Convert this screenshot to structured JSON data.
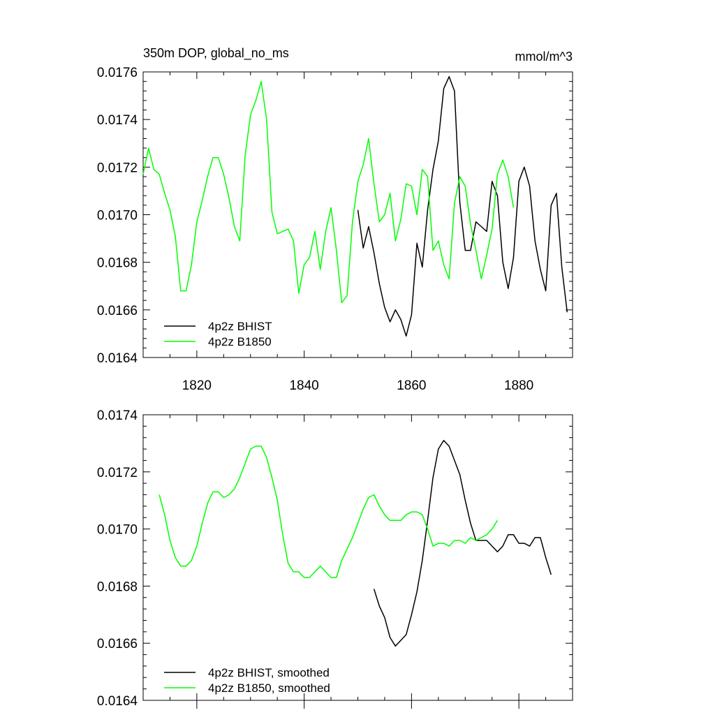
{
  "chart_data": [
    {
      "type": "line",
      "title": "350m DOP, global_no_ms",
      "units": "mmol/m^3",
      "xlabel": "",
      "ylabel": "",
      "xlim": [
        1810,
        1890
      ],
      "ylim": [
        0.0164,
        0.0176
      ],
      "xticks": [
        1820,
        1840,
        1860,
        1880
      ],
      "xtick_labels": [
        "1820",
        "1840",
        "1860",
        "1880"
      ],
      "yticks": [
        0.0164,
        0.0166,
        0.0168,
        0.017,
        0.0172,
        0.0174,
        0.0176
      ],
      "ytick_labels": [
        "0.0164",
        "0.0166",
        "0.0168",
        "0.0170",
        "0.0172",
        "0.0174",
        "0.0176"
      ],
      "grid": false,
      "legend_position": "bottom-left",
      "series": [
        {
          "name": "4p2z BHIST",
          "color": "#000000",
          "x": [
            1850,
            1851,
            1852,
            1853,
            1854,
            1855,
            1856,
            1857,
            1858,
            1859,
            1860,
            1861,
            1862,
            1863,
            1864,
            1865,
            1866,
            1867,
            1868,
            1869,
            1870,
            1871,
            1872,
            1873,
            1874,
            1875,
            1876,
            1877,
            1878,
            1879,
            1880,
            1881,
            1882,
            1883,
            1884,
            1885,
            1886,
            1887,
            1888,
            1889
          ],
          "y": [
            0.01702,
            0.01686,
            0.01695,
            0.01684,
            0.01671,
            0.01661,
            0.01655,
            0.0166,
            0.01656,
            0.01649,
            0.01658,
            0.01688,
            0.01678,
            0.01702,
            0.01719,
            0.01731,
            0.01753,
            0.01758,
            0.01752,
            0.01705,
            0.01685,
            0.01685,
            0.01697,
            0.01695,
            0.01693,
            0.01714,
            0.01708,
            0.0168,
            0.01669,
            0.01682,
            0.01714,
            0.0172,
            0.01712,
            0.01689,
            0.01677,
            0.01668,
            0.01704,
            0.01709,
            0.01678,
            0.01659
          ]
        },
        {
          "name": "4p2z B1850",
          "color": "#00ff00",
          "x": [
            1810,
            1811,
            1812,
            1813,
            1814,
            1815,
            1816,
            1817,
            1818,
            1819,
            1820,
            1821,
            1822,
            1823,
            1824,
            1825,
            1826,
            1827,
            1828,
            1829,
            1830,
            1831,
            1832,
            1833,
            1834,
            1835,
            1836,
            1837,
            1838,
            1839,
            1840,
            1841,
            1842,
            1843,
            1844,
            1845,
            1846,
            1847,
            1848,
            1849,
            1850,
            1851,
            1852,
            1853,
            1854,
            1855,
            1856,
            1857,
            1858,
            1859,
            1860,
            1861,
            1862,
            1863,
            1864,
            1865,
            1866,
            1867,
            1868,
            1869,
            1870,
            1871,
            1872,
            1873,
            1874,
            1875,
            1876,
            1877,
            1878,
            1879
          ],
          "y": [
            0.01717,
            0.01728,
            0.01719,
            0.01717,
            0.01709,
            0.01702,
            0.01691,
            0.01668,
            0.01668,
            0.01679,
            0.01697,
            0.01706,
            0.01716,
            0.01724,
            0.01724,
            0.01717,
            0.01707,
            0.01695,
            0.01689,
            0.01725,
            0.01742,
            0.01748,
            0.01756,
            0.0174,
            0.01701,
            0.01692,
            0.01693,
            0.01694,
            0.01689,
            0.01667,
            0.01679,
            0.01682,
            0.01693,
            0.01677,
            0.01693,
            0.01703,
            0.01685,
            0.01663,
            0.01666,
            0.01697,
            0.01714,
            0.01721,
            0.01732,
            0.01713,
            0.01697,
            0.017,
            0.01709,
            0.01689,
            0.01698,
            0.01713,
            0.01712,
            0.017,
            0.01719,
            0.01716,
            0.01685,
            0.01689,
            0.01679,
            0.01673,
            0.01705,
            0.01716,
            0.01712,
            0.01696,
            0.01685,
            0.01673,
            0.01683,
            0.01694,
            0.01717,
            0.01723,
            0.01716,
            0.01703
          ]
        }
      ]
    },
    {
      "type": "line",
      "title": "",
      "xlabel": "",
      "ylabel": "",
      "xlim": [
        1810,
        1890
      ],
      "ylim": [
        0.0164,
        0.0174
      ],
      "xticks": [
        1820,
        1840,
        1860,
        1880
      ],
      "yticks": [
        0.0164,
        0.0166,
        0.0168,
        0.017,
        0.0172,
        0.0174
      ],
      "ytick_labels": [
        "0.0164",
        "0.0166",
        "0.0168",
        "0.0170",
        "0.0172",
        "0.0174"
      ],
      "grid": false,
      "legend_position": "bottom-left",
      "series": [
        {
          "name": "4p2z BHIST, smoothed",
          "color": "#000000",
          "x": [
            1853,
            1854,
            1855,
            1856,
            1857,
            1858,
            1859,
            1860,
            1861,
            1862,
            1863,
            1864,
            1865,
            1866,
            1867,
            1868,
            1869,
            1870,
            1871,
            1872,
            1873,
            1874,
            1875,
            1876,
            1877,
            1878,
            1879,
            1880,
            1881,
            1882,
            1883,
            1884,
            1885,
            1886
          ],
          "y": [
            0.01679,
            0.01673,
            0.01669,
            0.01662,
            0.01659,
            0.01661,
            0.01663,
            0.0167,
            0.01678,
            0.01689,
            0.01703,
            0.01718,
            0.01728,
            0.01731,
            0.01729,
            0.01724,
            0.01719,
            0.0171,
            0.01702,
            0.01696,
            0.01696,
            0.01696,
            0.01694,
            0.01692,
            0.01694,
            0.01698,
            0.01698,
            0.01695,
            0.01695,
            0.01694,
            0.01697,
            0.01697,
            0.0169,
            0.01684
          ]
        },
        {
          "name": "4p2z B1850, smoothed",
          "color": "#00ff00",
          "x": [
            1813,
            1814,
            1815,
            1816,
            1817,
            1818,
            1819,
            1820,
            1821,
            1822,
            1823,
            1824,
            1825,
            1826,
            1827,
            1828,
            1829,
            1830,
            1831,
            1832,
            1833,
            1834,
            1835,
            1836,
            1837,
            1838,
            1839,
            1840,
            1841,
            1842,
            1843,
            1844,
            1845,
            1846,
            1847,
            1848,
            1849,
            1850,
            1851,
            1852,
            1853,
            1854,
            1855,
            1856,
            1857,
            1858,
            1859,
            1860,
            1861,
            1862,
            1863,
            1864,
            1865,
            1866,
            1867,
            1868,
            1869,
            1870,
            1871,
            1872,
            1873,
            1874,
            1875,
            1876
          ],
          "y": [
            0.01712,
            0.01705,
            0.01696,
            0.0169,
            0.01687,
            0.01687,
            0.01689,
            0.01694,
            0.01702,
            0.01709,
            0.01713,
            0.01713,
            0.01711,
            0.01712,
            0.01714,
            0.01718,
            0.01723,
            0.01728,
            0.01729,
            0.01729,
            0.01725,
            0.01718,
            0.0171,
            0.01698,
            0.01688,
            0.01685,
            0.01685,
            0.01683,
            0.01683,
            0.01685,
            0.01687,
            0.01685,
            0.01683,
            0.01683,
            0.01689,
            0.01693,
            0.01697,
            0.01702,
            0.01707,
            0.01711,
            0.01712,
            0.01708,
            0.01705,
            0.01703,
            0.01703,
            0.01703,
            0.01705,
            0.01706,
            0.01706,
            0.01705,
            0.017,
            0.01694,
            0.01695,
            0.01695,
            0.01694,
            0.01696,
            0.01696,
            0.01695,
            0.01697,
            0.01696,
            0.01697,
            0.01698,
            0.017,
            0.01703
          ]
        }
      ]
    }
  ]
}
